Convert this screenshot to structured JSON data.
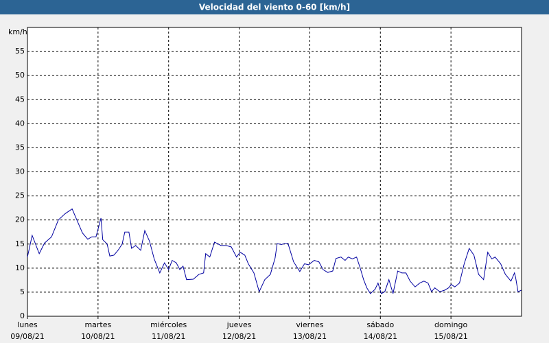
{
  "chart_data": {
    "type": "line",
    "title": "Velocidad del viento 0-60 [km/h]",
    "y_label": "km/h",
    "xlim": [
      0,
      168
    ],
    "ylim": [
      0,
      60
    ],
    "yticks": [
      0,
      5,
      10,
      15,
      20,
      25,
      30,
      35,
      40,
      45,
      50,
      55
    ],
    "xticks": [
      {
        "value": 0,
        "label": [
          "lunes",
          "09/08/21"
        ]
      },
      {
        "value": 24,
        "label": [
          "martes",
          "10/08/21"
        ]
      },
      {
        "value": 48,
        "label": [
          "miércoles",
          "11/08/21"
        ]
      },
      {
        "value": 72,
        "label": [
          "jueves",
          "12/08/21"
        ]
      },
      {
        "value": 96,
        "label": [
          "viernes",
          "13/08/21"
        ]
      },
      {
        "value": 120,
        "label": [
          "sábado",
          "14/08/21"
        ]
      },
      {
        "value": 144,
        "label": [
          "domingo",
          "15/08/21"
        ]
      }
    ],
    "grid": true,
    "series": [
      {
        "color": "#0000a0",
        "x": [
          0,
          1.6,
          4.0,
          5.8,
          8.2,
          10.5,
          12.8,
          15.2,
          16.8,
          18.7,
          20.5,
          21.9,
          23.3,
          25.0,
          25.6,
          27.1,
          28.0,
          29.4,
          30.8,
          32.2,
          33.1,
          34.5,
          35.4,
          36.8,
          38.5,
          39.9,
          41.5,
          43.1,
          45.0,
          46.6,
          48.0,
          49.2,
          50.6,
          51.8,
          52.9,
          54.1,
          56.4,
          58.3,
          59.9,
          60.6,
          62.0,
          63.6,
          65.8,
          67.6,
          69.3,
          71.1,
          72.3,
          73.9,
          75.1,
          77.0,
          78.8,
          80.7,
          82.6,
          84.2,
          84.9,
          86.3,
          87.5,
          88.6,
          90.5,
          92.6,
          94.2,
          95.6,
          97.5,
          99.1,
          100.5,
          102.1,
          103.8,
          104.9,
          106.6,
          108.0,
          109.1,
          110.5,
          111.9,
          113.1,
          114.3,
          115.4,
          116.6,
          118.2,
          119.2,
          120.3,
          121.5,
          122.9,
          124.3,
          125.9,
          127.3,
          128.7,
          130.1,
          131.8,
          133.4,
          134.8,
          136.2,
          137.4,
          138.5,
          140.2,
          141.8,
          143.2,
          144.1,
          145.3,
          146.9,
          148.5,
          150.2,
          151.8,
          153.4,
          155.1,
          156.5,
          157.9,
          159.0,
          160.9,
          162.5,
          164.4,
          165.6,
          166.0,
          166.8,
          167.9
        ],
        "values": [
          12.3,
          16.8,
          13,
          15.2,
          16.5,
          20,
          21.3,
          22.3,
          20,
          17.3,
          16,
          16.5,
          16.5,
          20.4,
          15.9,
          15,
          12.5,
          12.7,
          13.7,
          15,
          17.5,
          17.5,
          14.1,
          14.7,
          13.7,
          17.8,
          15.6,
          11.9,
          9,
          11.1,
          9.7,
          11.6,
          11.1,
          9.7,
          10.4,
          7.6,
          7.7,
          8.7,
          9,
          13,
          12.3,
          15.4,
          14.7,
          14.7,
          14.4,
          12.3,
          13.3,
          12.7,
          10.9,
          9,
          5.1,
          7.6,
          8.7,
          12.1,
          15.1,
          14.9,
          15.1,
          15.1,
          11.3,
          9.3,
          10.9,
          10.7,
          11.6,
          11.3,
          9.7,
          9.1,
          9.4,
          12,
          12.3,
          11.6,
          12.3,
          11.9,
          12.3,
          10.1,
          7.6,
          5.9,
          4.7,
          5.6,
          6.9,
          4.7,
          5.1,
          7.6,
          4.7,
          9.4,
          9,
          9,
          7.3,
          6.1,
          6.9,
          7.3,
          6.9,
          5.1,
          5.9,
          5.1,
          5.4,
          5.9,
          6.6,
          6.1,
          6.9,
          10.9,
          14.1,
          12.7,
          8.7,
          7.6,
          13.3,
          11.9,
          12.3,
          10.9,
          8.7,
          7.3,
          9,
          8,
          5.1,
          5.4
        ]
      }
    ]
  }
}
